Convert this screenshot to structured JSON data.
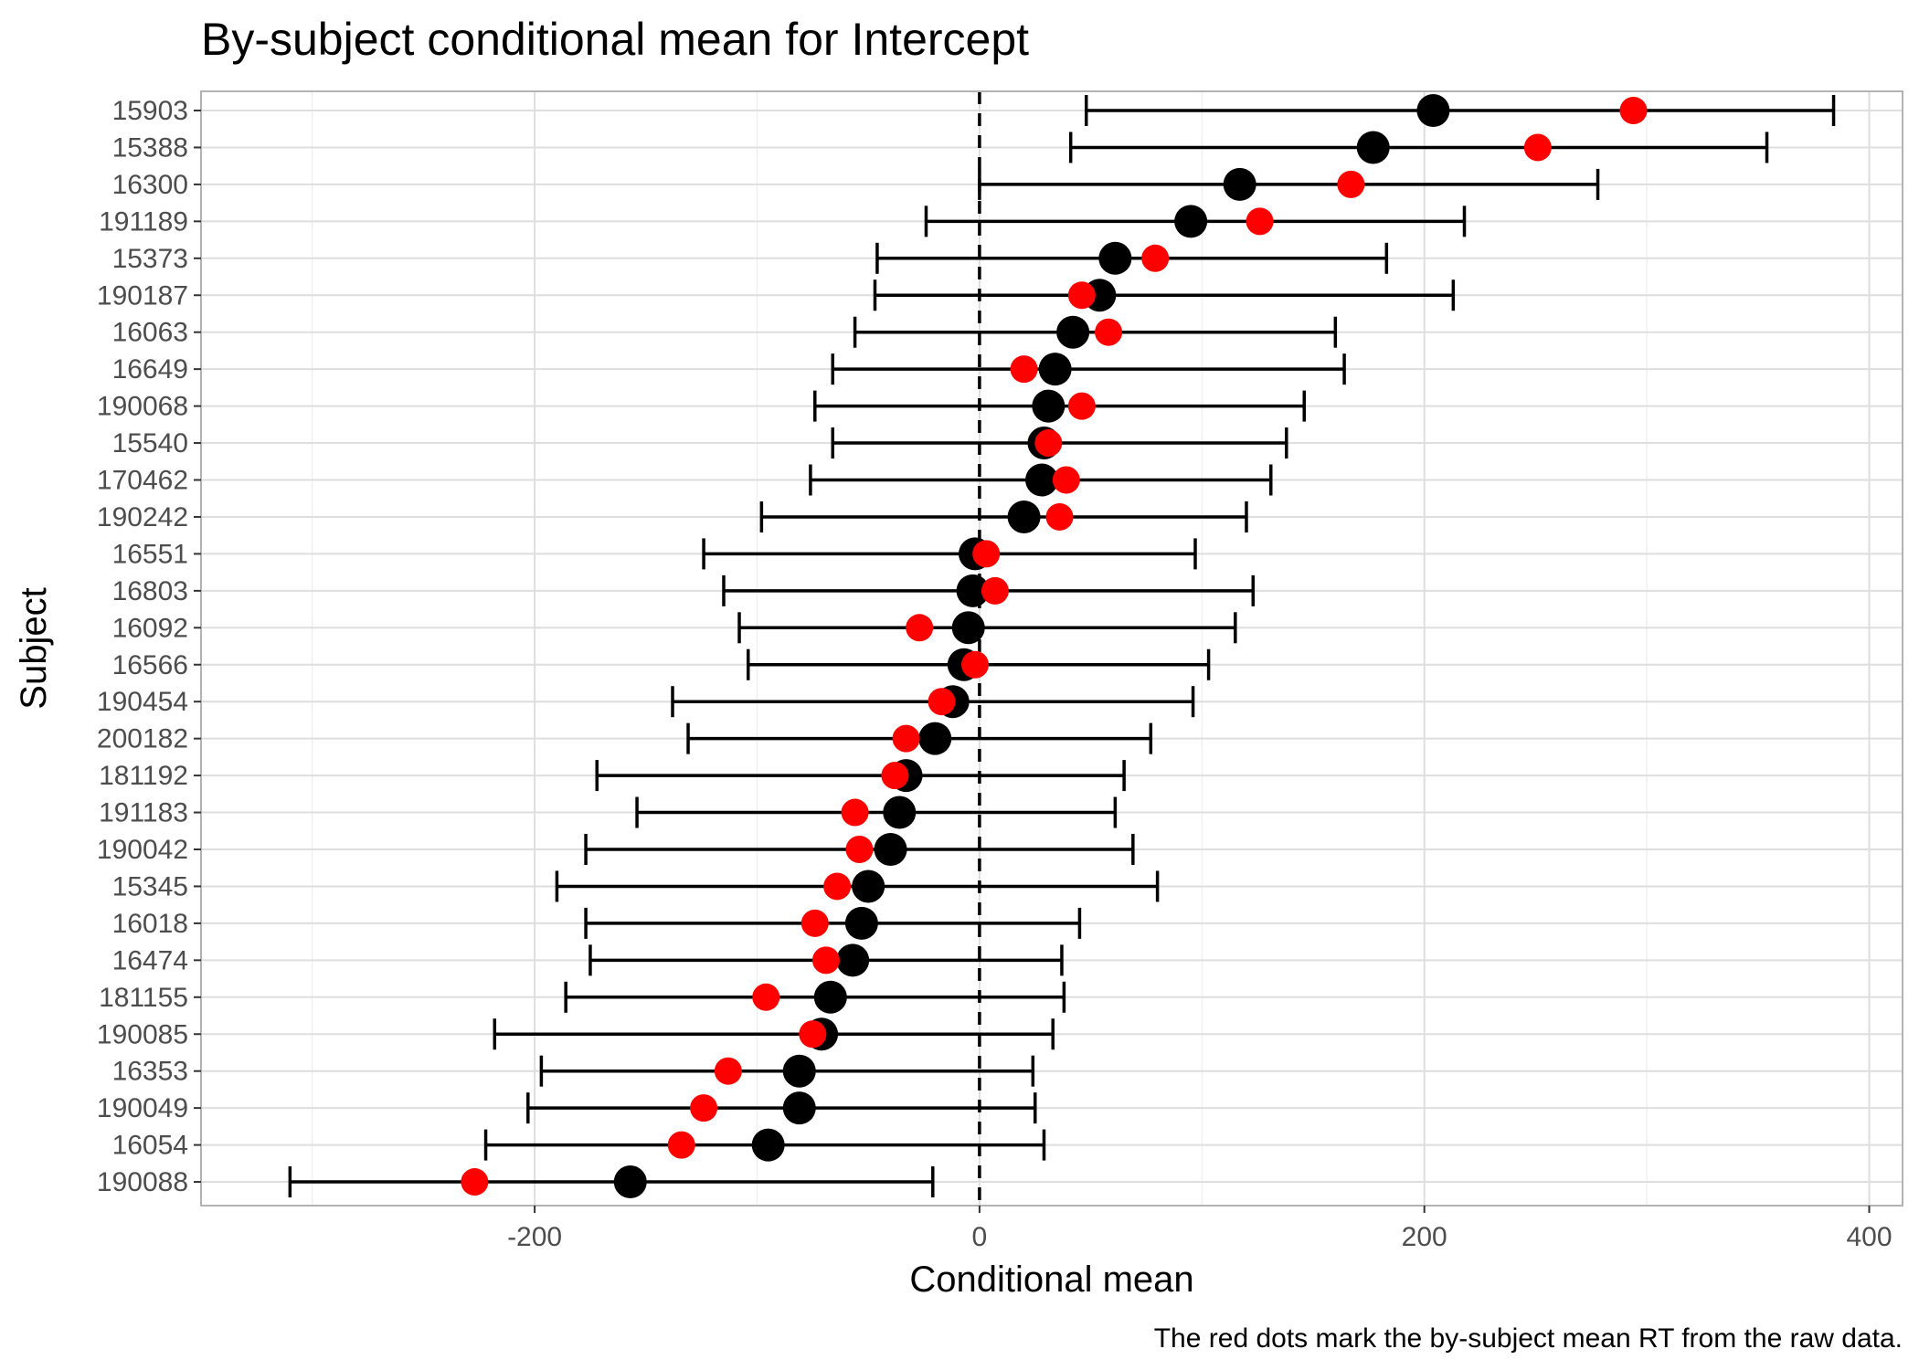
{
  "chart_data": {
    "type": "scatter",
    "title": "By-subject conditional mean for Intercept",
    "xlabel": "Conditional mean",
    "ylabel": "Subject",
    "caption": "The red dots mark the by-subject mean RT from the raw data.",
    "xlim": [
      -350,
      415
    ],
    "xticks": [
      -200,
      0,
      200,
      400
    ],
    "xtick_labels": [
      "-200",
      "0",
      "200",
      "400"
    ],
    "grid": true,
    "reference_line": {
      "x": 0,
      "style": "dashed"
    },
    "series": [
      {
        "name": "",
        "color": "#000000",
        "role": "conditional-mean"
      },
      {
        "name": "",
        "color": "#ff0000",
        "role": "raw-mean"
      }
    ],
    "subjects": [
      {
        "id": "15903",
        "cond": 204,
        "raw": 294,
        "lo": 48,
        "hi": 384
      },
      {
        "id": "15388",
        "cond": 177,
        "raw": 251,
        "lo": 41,
        "hi": 354
      },
      {
        "id": "16300",
        "cond": 117,
        "raw": 167,
        "lo": 0,
        "hi": 278
      },
      {
        "id": "191189",
        "cond": 95,
        "raw": 126,
        "lo": -24,
        "hi": 218
      },
      {
        "id": "15373",
        "cond": 61,
        "raw": 79,
        "lo": -46,
        "hi": 183
      },
      {
        "id": "190187",
        "cond": 54,
        "raw": 46,
        "lo": -47,
        "hi": 213
      },
      {
        "id": "16063",
        "cond": 42,
        "raw": 58,
        "lo": -56,
        "hi": 160
      },
      {
        "id": "16649",
        "cond": 34,
        "raw": 20,
        "lo": -66,
        "hi": 164
      },
      {
        "id": "190068",
        "cond": 31,
        "raw": 46,
        "lo": -74,
        "hi": 146
      },
      {
        "id": "15540",
        "cond": 29,
        "raw": 31,
        "lo": -66,
        "hi": 138
      },
      {
        "id": "170462",
        "cond": 28,
        "raw": 39,
        "lo": -76,
        "hi": 131
      },
      {
        "id": "190242",
        "cond": 20,
        "raw": 36,
        "lo": -98,
        "hi": 120
      },
      {
        "id": "16551",
        "cond": -2,
        "raw": 3,
        "lo": -124,
        "hi": 97
      },
      {
        "id": "16803",
        "cond": -3,
        "raw": 7,
        "lo": -115,
        "hi": 123
      },
      {
        "id": "16092",
        "cond": -5,
        "raw": -27,
        "lo": -108,
        "hi": 115
      },
      {
        "id": "16566",
        "cond": -7,
        "raw": -2,
        "lo": -104,
        "hi": 103
      },
      {
        "id": "190454",
        "cond": -12,
        "raw": -17,
        "lo": -138,
        "hi": 96
      },
      {
        "id": "200182",
        "cond": -20,
        "raw": -33,
        "lo": -131,
        "hi": 77
      },
      {
        "id": "181192",
        "cond": -33,
        "raw": -38,
        "lo": -172,
        "hi": 65
      },
      {
        "id": "191183",
        "cond": -36,
        "raw": -56,
        "lo": -154,
        "hi": 61
      },
      {
        "id": "190042",
        "cond": -40,
        "raw": -54,
        "lo": -177,
        "hi": 69
      },
      {
        "id": "15345",
        "cond": -50,
        "raw": -64,
        "lo": -190,
        "hi": 80
      },
      {
        "id": "16018",
        "cond": -53,
        "raw": -74,
        "lo": -177,
        "hi": 45
      },
      {
        "id": "16474",
        "cond": -57,
        "raw": -69,
        "lo": -175,
        "hi": 37
      },
      {
        "id": "181155",
        "cond": -67,
        "raw": -96,
        "lo": -186,
        "hi": 38
      },
      {
        "id": "190085",
        "cond": -71,
        "raw": -75,
        "lo": -218,
        "hi": 33
      },
      {
        "id": "16353",
        "cond": -81,
        "raw": -113,
        "lo": -197,
        "hi": 24
      },
      {
        "id": "190049",
        "cond": -81,
        "raw": -124,
        "lo": -203,
        "hi": 25
      },
      {
        "id": "16054",
        "cond": -95,
        "raw": -134,
        "lo": -222,
        "hi": 29
      },
      {
        "id": "190088",
        "cond": -157,
        "raw": -227,
        "lo": -310,
        "hi": -21
      }
    ]
  }
}
